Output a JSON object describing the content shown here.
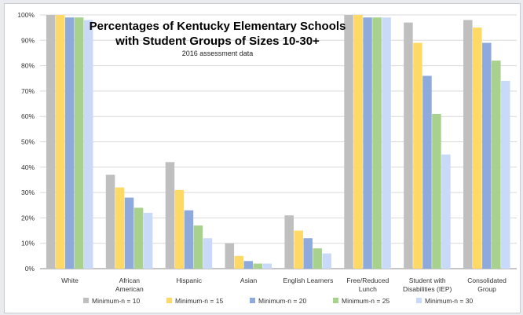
{
  "chart_data": {
    "type": "bar",
    "title": "Percentages of Kentucky Elementary Schools",
    "title_line2": "with Student Groups of Sizes 10-30+",
    "subtitle": "2016 assessment data",
    "categories": [
      [
        "White"
      ],
      [
        "African",
        "American"
      ],
      [
        "Hispanic"
      ],
      [
        "Asian"
      ],
      [
        "English Learners"
      ],
      [
        "Free/Reduced",
        "Lunch"
      ],
      [
        "Student with",
        "Disabilities (IEP)"
      ],
      [
        "Consolidated",
        "Group"
      ]
    ],
    "series": [
      {
        "name": "Minimum-n = 10",
        "color": "#bfbfbf",
        "values": [
          100,
          37,
          42,
          10,
          21,
          100,
          97,
          98
        ]
      },
      {
        "name": "Minimum-n = 15",
        "color": "#ffd966",
        "values": [
          100,
          32,
          31,
          5,
          15,
          100,
          89,
          95
        ]
      },
      {
        "name": "Minimum-n = 20",
        "color": "#8ea9db",
        "values": [
          99,
          28,
          23,
          3,
          12,
          99,
          76,
          89
        ]
      },
      {
        "name": "Minimum-n = 25",
        "color": "#a9d18e",
        "values": [
          99,
          24,
          17,
          2,
          8,
          99,
          61,
          82
        ]
      },
      {
        "name": "Minimum-n = 30",
        "color": "#c9daf8",
        "values": [
          98,
          22,
          12,
          2,
          6,
          99,
          45,
          74
        ]
      }
    ],
    "ylim": [
      0,
      100
    ],
    "yticks": [
      "0%",
      "10%",
      "20%",
      "30%",
      "40%",
      "50%",
      "60%",
      "70%",
      "80%",
      "90%",
      "100%"
    ],
    "grid": true,
    "legend_position": "bottom"
  }
}
